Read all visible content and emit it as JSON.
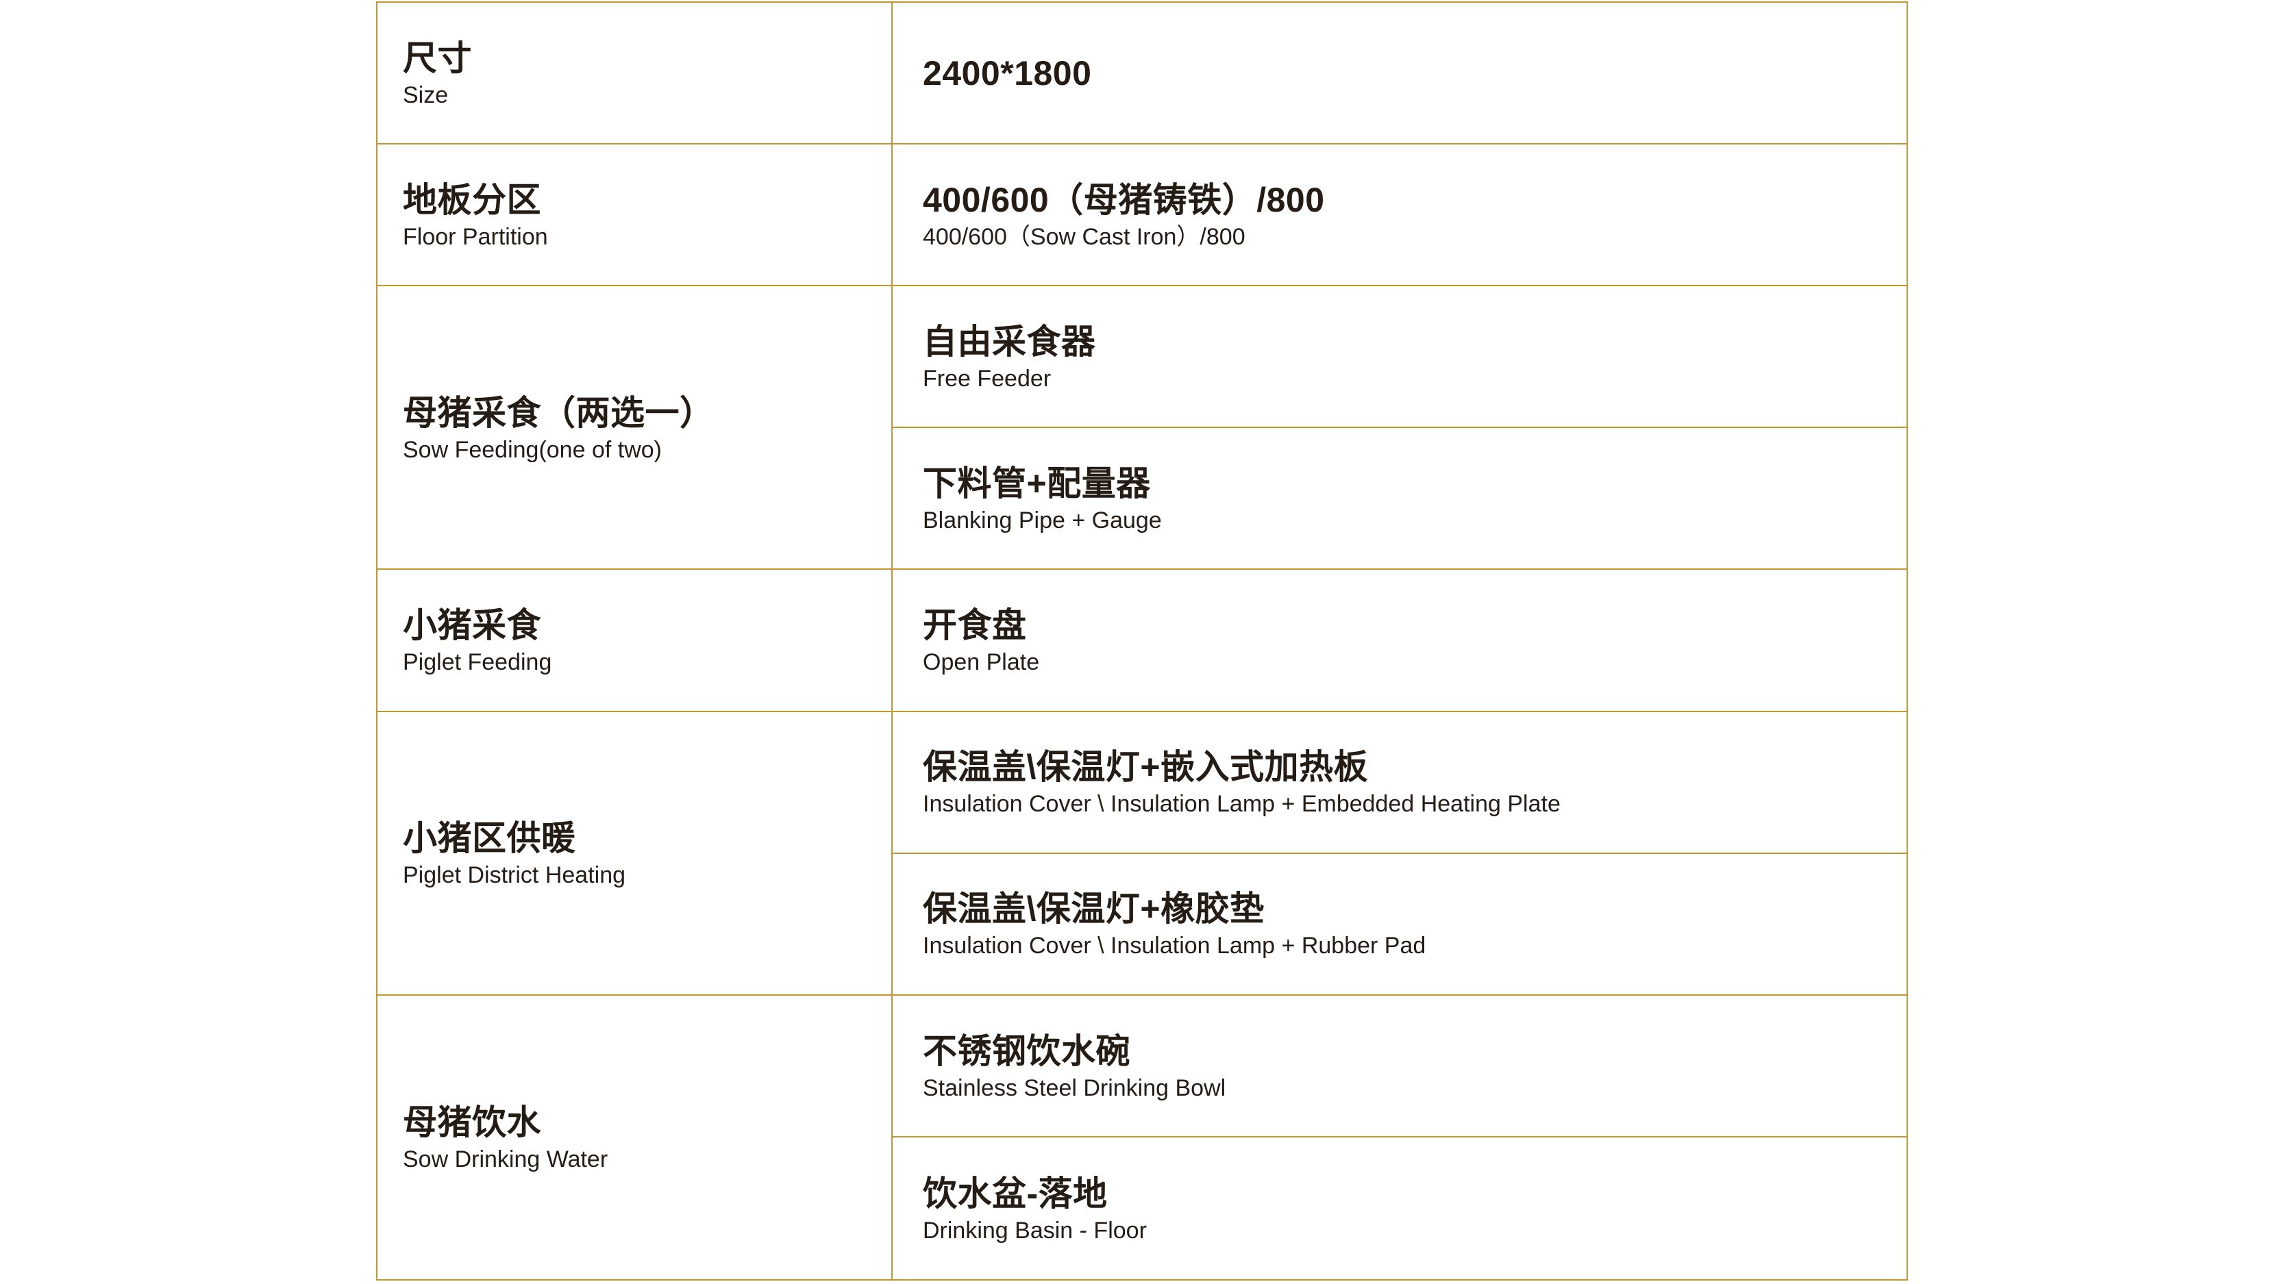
{
  "table": {
    "border_color": "#C19930",
    "text_color": "#241C15",
    "rows": [
      {
        "label_zh": "尺寸",
        "label_en": "Size",
        "values": [
          {
            "zh": "2400*1800",
            "en": ""
          }
        ]
      },
      {
        "label_zh": "地板分区",
        "label_en": "Floor Partition",
        "values": [
          {
            "zh": "400/600（母猪铸铁）/800",
            "en": "400/600（Sow Cast Iron）/800"
          }
        ]
      },
      {
        "label_zh": "母猪采食（两选一）",
        "label_en": "Sow Feeding(one of two)",
        "values": [
          {
            "zh": "自由采食器",
            "en": "Free Feeder"
          },
          {
            "zh": "下料管+配量器",
            "en": "Blanking Pipe + Gauge"
          }
        ]
      },
      {
        "label_zh": "小猪采食",
        "label_en": "Piglet Feeding",
        "values": [
          {
            "zh": "开食盘",
            "en": "Open Plate"
          }
        ]
      },
      {
        "label_zh": "小猪区供暖",
        "label_en": "Piglet District Heating",
        "values": [
          {
            "zh": "保温盖\\保温灯+嵌入式加热板",
            "en": "Insulation Cover \\ Insulation Lamp + Embedded Heating Plate"
          },
          {
            "zh": "保温盖\\保温灯+橡胶垫",
            "en": "Insulation Cover \\ Insulation Lamp + Rubber Pad"
          }
        ]
      },
      {
        "label_zh": "母猪饮水",
        "label_en": "Sow Drinking Water",
        "values": [
          {
            "zh": "不锈钢饮水碗",
            "en": "Stainless Steel Drinking Bowl"
          },
          {
            "zh": "饮水盆-落地",
            "en": "Drinking Basin - Floor"
          }
        ]
      }
    ]
  }
}
